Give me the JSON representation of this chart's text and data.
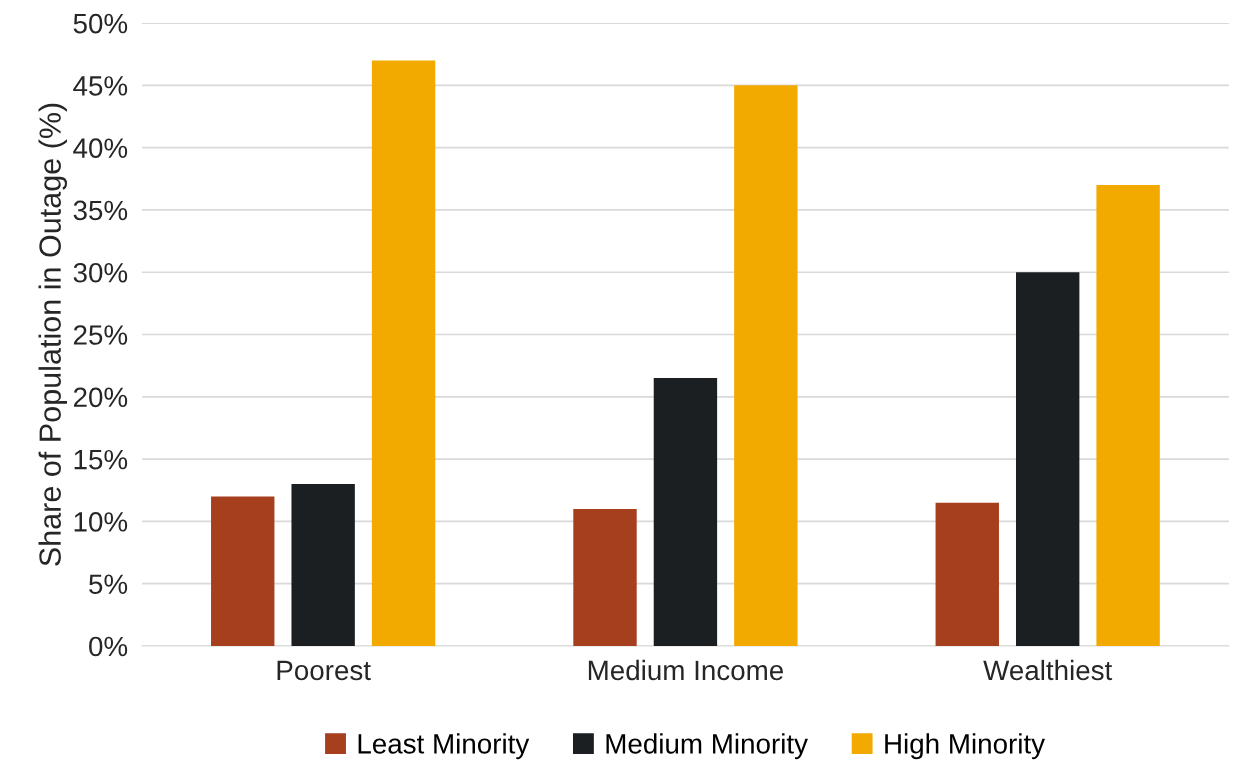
{
  "chart_data": {
    "type": "bar",
    "ylabel": "Share of Population in Outage (%)",
    "categories": [
      "Poorest",
      "Medium Income",
      "Wealthiest"
    ],
    "series": [
      {
        "name": "Least Minority",
        "color": "#a63f1e",
        "values": [
          12,
          11,
          11.5
        ]
      },
      {
        "name": "Medium Minority",
        "color": "#1c1f22",
        "values": [
          13,
          21.5,
          30
        ]
      },
      {
        "name": "High Minority",
        "color": "#f2a900",
        "values": [
          47,
          45,
          37
        ]
      }
    ],
    "ylim": [
      0,
      50
    ],
    "yticks": [
      {
        "value": 0,
        "label": "0%"
      },
      {
        "value": 5,
        "label": "5%"
      },
      {
        "value": 10,
        "label": "10%"
      },
      {
        "value": 15,
        "label": "15%"
      },
      {
        "value": 20,
        "label": "20%"
      },
      {
        "value": 25,
        "label": "25%"
      },
      {
        "value": 30,
        "label": "30%"
      },
      {
        "value": 35,
        "label": "35%"
      },
      {
        "value": 40,
        "label": "40%"
      },
      {
        "value": 45,
        "label": "45%"
      },
      {
        "value": 50,
        "label": "50%"
      }
    ],
    "grid": "y",
    "legend": "bottom"
  }
}
